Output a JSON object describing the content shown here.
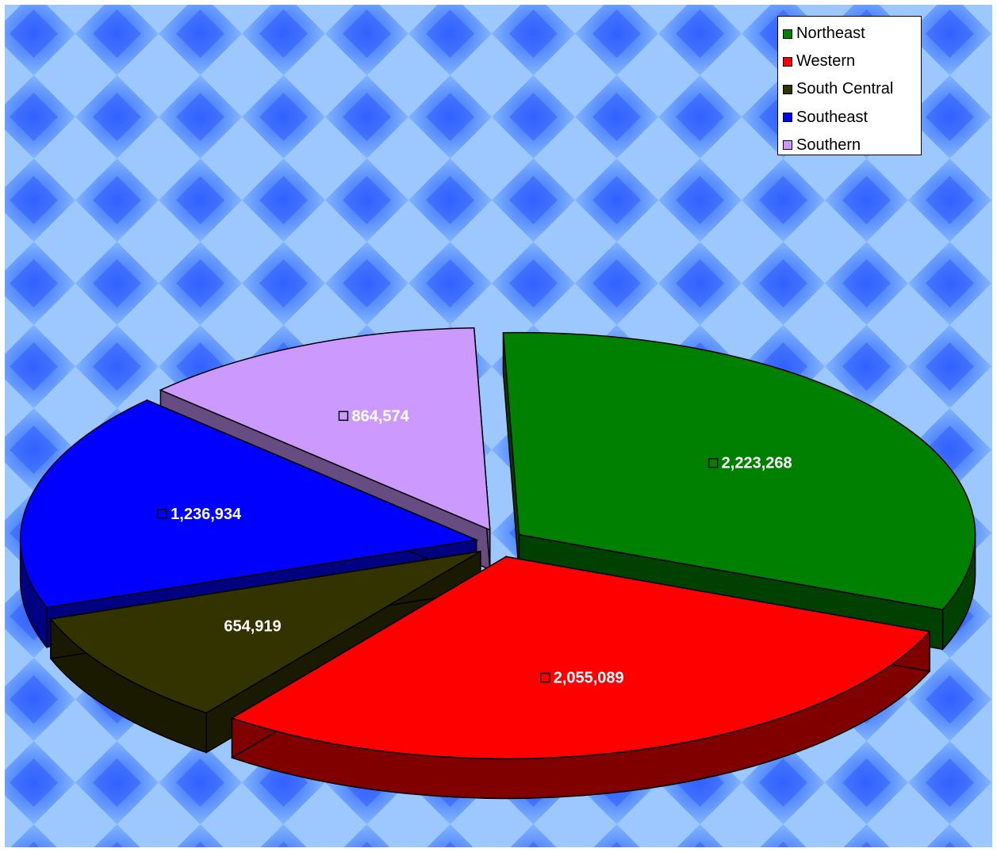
{
  "chart_data": {
    "type": "pie",
    "style": "3d-exploded",
    "title": "",
    "legend_position": "top-right",
    "background": "blue-diamond-pattern",
    "categories": [
      "Northeast",
      "Western",
      "South Central",
      "Southeast",
      "Southern"
    ],
    "values": [
      2223268,
      2055089,
      654919,
      1236934,
      864574
    ],
    "value_labels": [
      "2,223,268",
      "2,055,089",
      "654,919",
      "1,236,934",
      "864,574"
    ],
    "colors": [
      "#008000",
      "#FF0000",
      "#333300",
      "#0000FF",
      "#CC99FF"
    ],
    "side_colors": [
      "#004000",
      "#800000",
      "#1A1A00",
      "#000080",
      "#664C80"
    ],
    "label_key_visible": [
      true,
      true,
      false,
      true,
      true
    ]
  }
}
